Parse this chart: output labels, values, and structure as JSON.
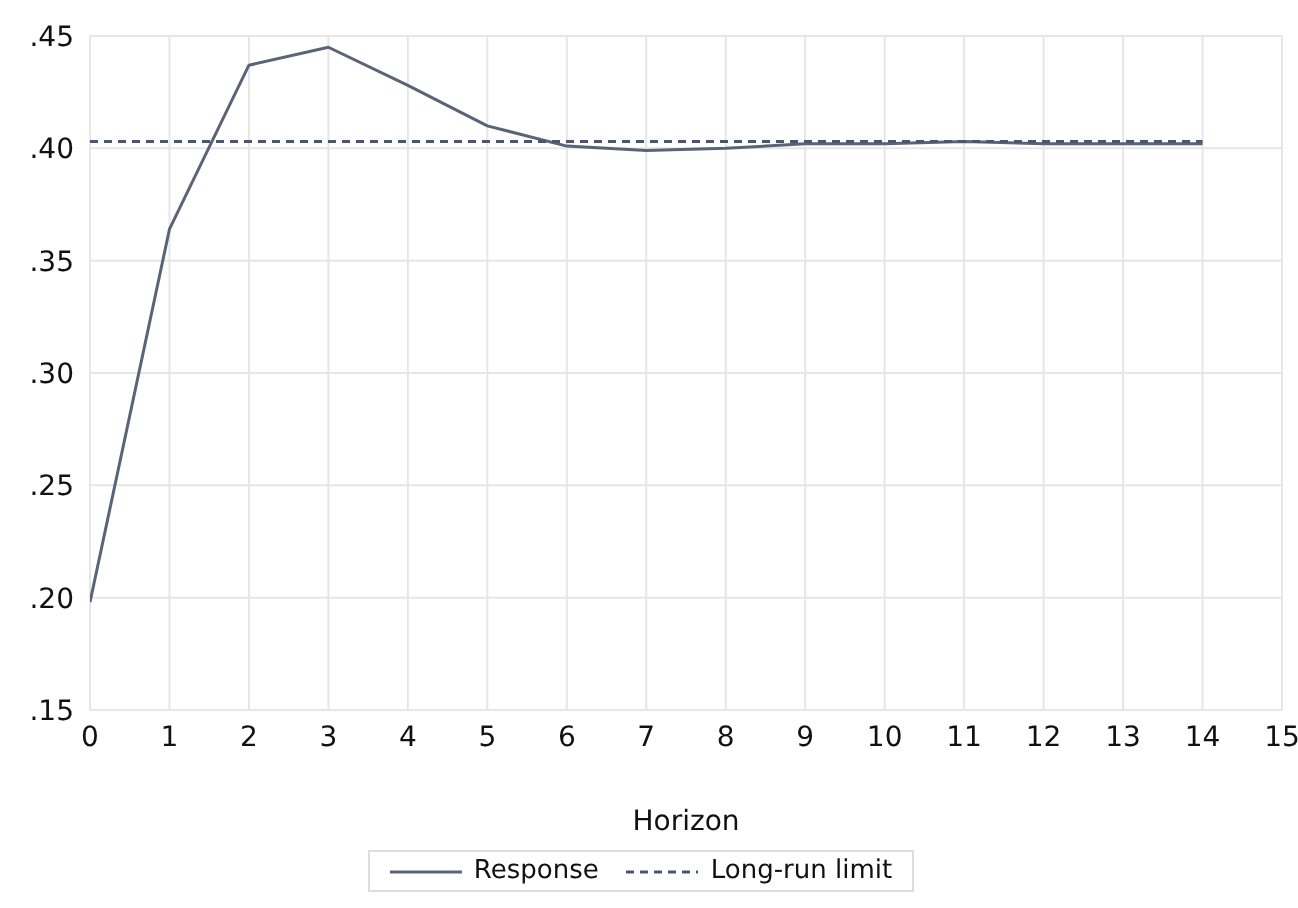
{
  "chart_data": {
    "type": "line",
    "xlabel": "Horizon",
    "x": [
      0,
      1,
      2,
      3,
      4,
      5,
      6,
      7,
      8,
      9,
      10,
      11,
      12,
      13,
      14
    ],
    "series": [
      {
        "name": "Response",
        "color": "#5a6378",
        "line_style": "solid",
        "values": [
          0.198,
          0.364,
          0.437,
          0.445,
          0.428,
          0.41,
          0.401,
          0.399,
          0.4,
          0.402,
          0.402,
          0.403,
          0.402,
          0.402,
          0.402
        ]
      },
      {
        "name": "Long-run limit",
        "color": "#4a5570",
        "line_style": "dashed",
        "values": [
          0.403,
          0.403,
          0.403,
          0.403,
          0.403,
          0.403,
          0.403,
          0.403,
          0.403,
          0.403,
          0.403,
          0.403,
          0.403,
          0.403,
          0.403
        ]
      }
    ],
    "xlim": [
      0,
      15
    ],
    "xticks": [
      0,
      1,
      2,
      3,
      4,
      5,
      6,
      7,
      8,
      9,
      10,
      11,
      12,
      13,
      14,
      15
    ],
    "ylim": [
      0.15,
      0.45
    ],
    "yticks": [
      {
        "value": 0.15,
        "label": ".15"
      },
      {
        "value": 0.2,
        "label": ".20"
      },
      {
        "value": 0.25,
        "label": ".25"
      },
      {
        "value": 0.3,
        "label": ".30"
      },
      {
        "value": 0.35,
        "label": ".35"
      },
      {
        "value": 0.4,
        "label": ".40"
      },
      {
        "value": 0.45,
        "label": ".45"
      }
    ],
    "grid": true,
    "legend": "bottom",
    "marker": "none"
  }
}
